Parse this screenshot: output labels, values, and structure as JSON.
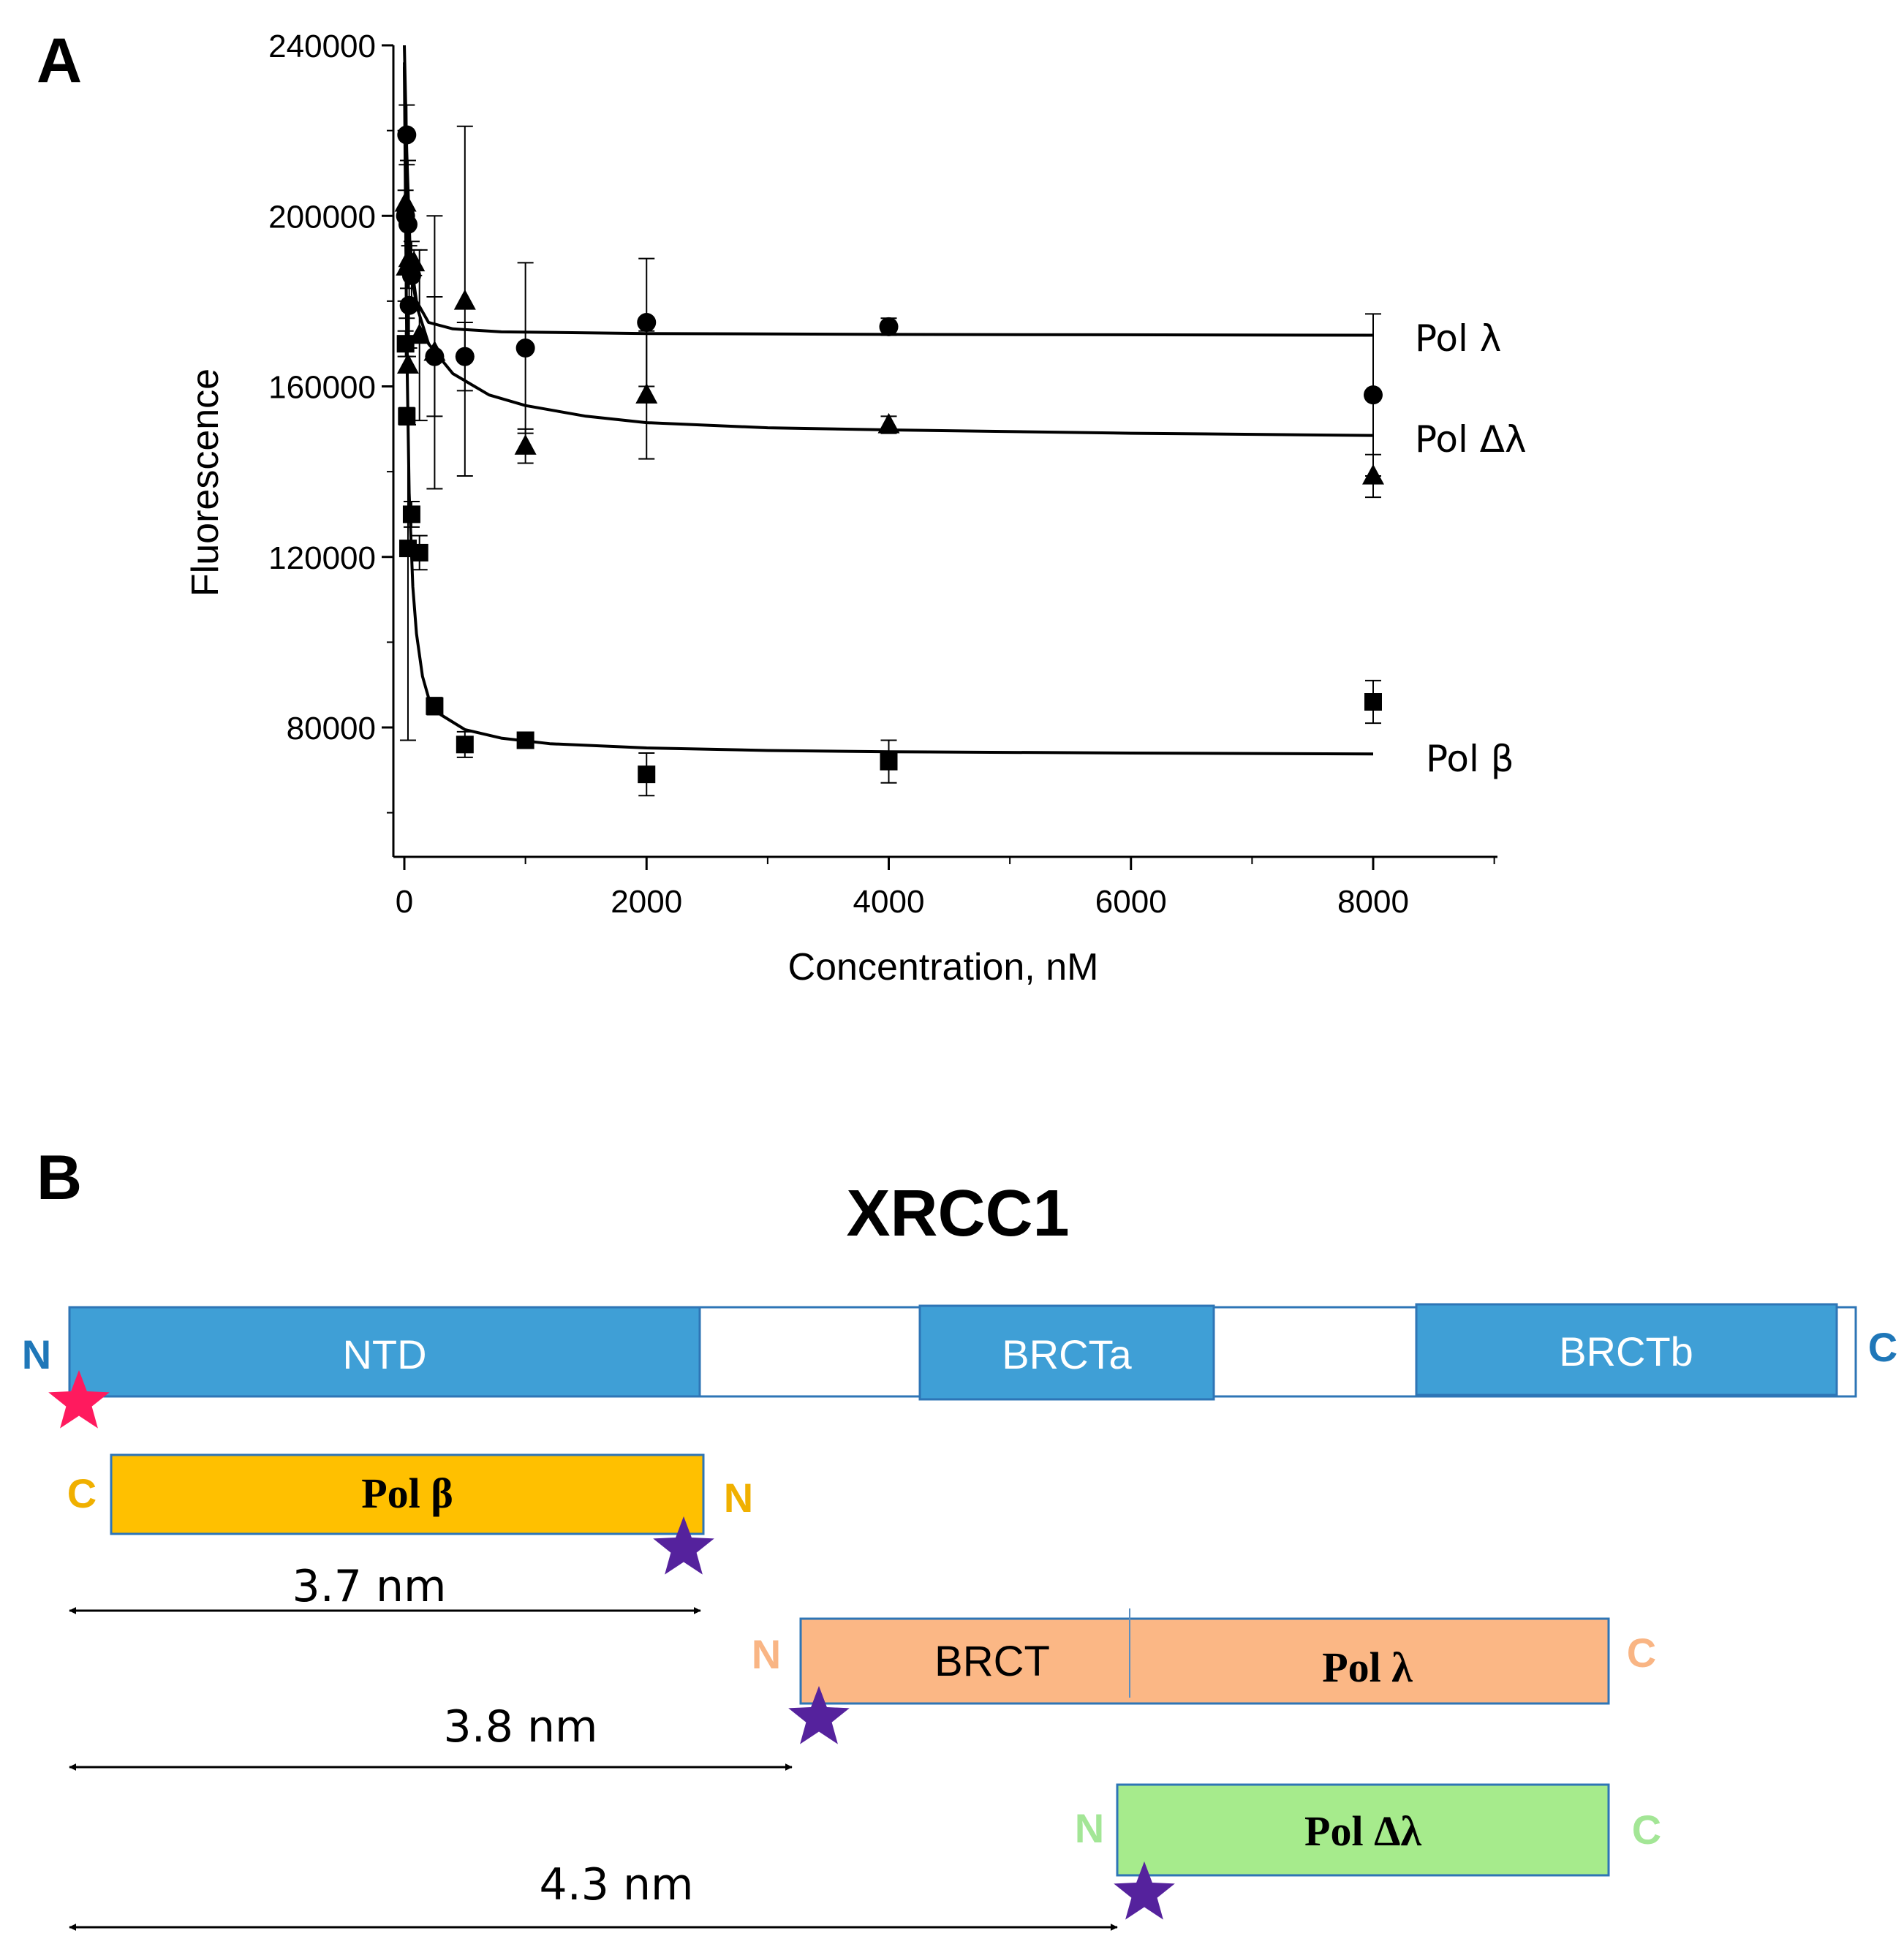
{
  "panel_a": {
    "label": "A",
    "chart_data": {
      "type": "scatter",
      "xlabel": "Concentration, nM",
      "ylabel": "Fluorescence",
      "xlim": [
        -100,
        9000
      ],
      "ylim": [
        50000,
        240000
      ],
      "x_ticks": [
        0,
        2000,
        4000,
        6000,
        8000
      ],
      "x_tick_labels": [
        "0",
        "2000",
        "4000",
        "6000",
        "8000"
      ],
      "y_ticks": [
        80000,
        120000,
        160000,
        200000,
        240000
      ],
      "y_tick_labels": [
        "80000",
        "120000",
        "160000",
        "200000",
        "240000"
      ],
      "grid": false,
      "legend": "labels placed right of curve ends",
      "series": [
        {
          "name": "Pol λ",
          "marker": "circle",
          "points": [
            {
              "x": 10,
              "y": 200000,
              "err": 20000
            },
            {
              "x": 20,
              "y": 219000,
              "err": 7000
            },
            {
              "x": 30,
              "y": 198000,
              "err": 15000
            },
            {
              "x": 40,
              "y": 179000,
              "err": 10000
            },
            {
              "x": 60,
              "y": 186000,
              "err": 8000
            },
            {
              "x": 250,
              "y": 167000,
              "err": 14000
            },
            {
              "x": 500,
              "y": 167000,
              "err": 8000
            },
            {
              "x": 1000,
              "y": 169000,
              "err": 20000
            },
            {
              "x": 2000,
              "y": 175000,
              "err": 15000
            },
            {
              "x": 4000,
              "y": 174000,
              "err": 2000
            },
            {
              "x": 8000,
              "y": 158000,
              "err": 19000
            }
          ],
          "fit": [
            [
              0,
              240000
            ],
            [
              20,
              215000
            ],
            [
              50,
              190000
            ],
            [
              100,
              180000
            ],
            [
              200,
              175000
            ],
            [
              400,
              173500
            ],
            [
              800,
              172800
            ],
            [
              2000,
              172400
            ],
            [
              4000,
              172200
            ],
            [
              8000,
              172000
            ]
          ]
        },
        {
          "name": "Pol Δλ",
          "marker": "triangle",
          "points": [
            {
              "x": 10,
              "y": 203000,
              "err": 3000
            },
            {
              "x": 20,
              "y": 188000,
              "err": 12000
            },
            {
              "x": 30,
              "y": 165000,
              "err": 14000
            },
            {
              "x": 40,
              "y": 190000,
              "err": 3000
            },
            {
              "x": 80,
              "y": 189000,
              "err": 3000
            },
            {
              "x": 125,
              "y": 172000,
              "err": 20000
            },
            {
              "x": 250,
              "y": 168000,
              "err": 32000
            },
            {
              "x": 500,
              "y": 180000,
              "err": 41000
            },
            {
              "x": 1000,
              "y": 146000,
              "err": 4000
            },
            {
              "x": 2000,
              "y": 158000,
              "err": 15000
            },
            {
              "x": 4000,
              "y": 151000,
              "err": 2000
            },
            {
              "x": 8000,
              "y": 139000,
              "err": 5000
            }
          ],
          "fit": [
            [
              0,
              236000
            ],
            [
              20,
              205000
            ],
            [
              50,
              188000
            ],
            [
              100,
              179000
            ],
            [
              200,
              170000
            ],
            [
              400,
              163000
            ],
            [
              700,
              158000
            ],
            [
              1000,
              155500
            ],
            [
              1500,
              153000
            ],
            [
              2000,
              151500
            ],
            [
              3000,
              150300
            ],
            [
              4000,
              149800
            ],
            [
              6000,
              149000
            ],
            [
              8000,
              148500
            ]
          ]
        },
        {
          "name": "Pol β",
          "marker": "square",
          "points": [
            {
              "x": 10,
              "y": 170000,
              "err": 3000
            },
            {
              "x": 20,
              "y": 153000,
              "err": 2000
            },
            {
              "x": 30,
              "y": 122000,
              "err": 45000
            },
            {
              "x": 60,
              "y": 130000,
              "err": 3000
            },
            {
              "x": 125,
              "y": 121000,
              "err": 4000
            },
            {
              "x": 250,
              "y": 85000,
              "err": 2000
            },
            {
              "x": 500,
              "y": 76000,
              "err": 3000
            },
            {
              "x": 1000,
              "y": 77000,
              "err": 1000
            },
            {
              "x": 2000,
              "y": 69000,
              "err": 5000
            },
            {
              "x": 4000,
              "y": 72000,
              "err": 5000
            },
            {
              "x": 8000,
              "y": 86000,
              "err": 5000
            }
          ],
          "fit": [
            [
              0,
              235000
            ],
            [
              10,
              200000
            ],
            [
              20,
              170000
            ],
            [
              40,
              135000
            ],
            [
              70,
              113000
            ],
            [
              100,
              102000
            ],
            [
              150,
              92000
            ],
            [
              200,
              87000
            ],
            [
              300,
              83000
            ],
            [
              500,
              79500
            ],
            [
              800,
              77500
            ],
            [
              1200,
              76200
            ],
            [
              2000,
              75200
            ],
            [
              3000,
              74600
            ],
            [
              4000,
              74300
            ],
            [
              6000,
              74000
            ],
            [
              8000,
              73800
            ]
          ]
        }
      ],
      "series_labels": [
        "Pol λ",
        "Pol Δλ",
        "Pol β"
      ]
    }
  },
  "panel_b": {
    "label": "B",
    "title": "XRCC1",
    "xrcc1": {
      "n_label": "N",
      "c_label": "C",
      "domains": [
        "NTD",
        "BRCTa",
        "BRCTb"
      ]
    },
    "pol_beta": {
      "label": "Pol β",
      "left_end": "C",
      "right_end": "N",
      "distance": "3.7 nm"
    },
    "pol_lambda": {
      "domain_label": "BRCT",
      "label": "Pol λ",
      "left_end": "N",
      "right_end": "C",
      "distance": "3.8 nm"
    },
    "pol_delta_lambda": {
      "label": "Pol Δλ",
      "left_end": "N",
      "right_end": "C",
      "distance": "4.3 nm"
    },
    "colors": {
      "xrcc1_blue": "#3f9fd6",
      "xrcc1_text": "#1f77b8",
      "pol_beta_fill": "#ffc000",
      "pol_beta_text": "#f0b000",
      "pol_lambda_fill": "#fbb785",
      "pol_lambda_text": "#f9b584",
      "pol_delta_lambda_fill": "#a6eb8c",
      "pol_delta_lambda_text": "#a3e696",
      "donor_star": "#ff1a5e",
      "acceptor_star": "#55229d"
    }
  }
}
